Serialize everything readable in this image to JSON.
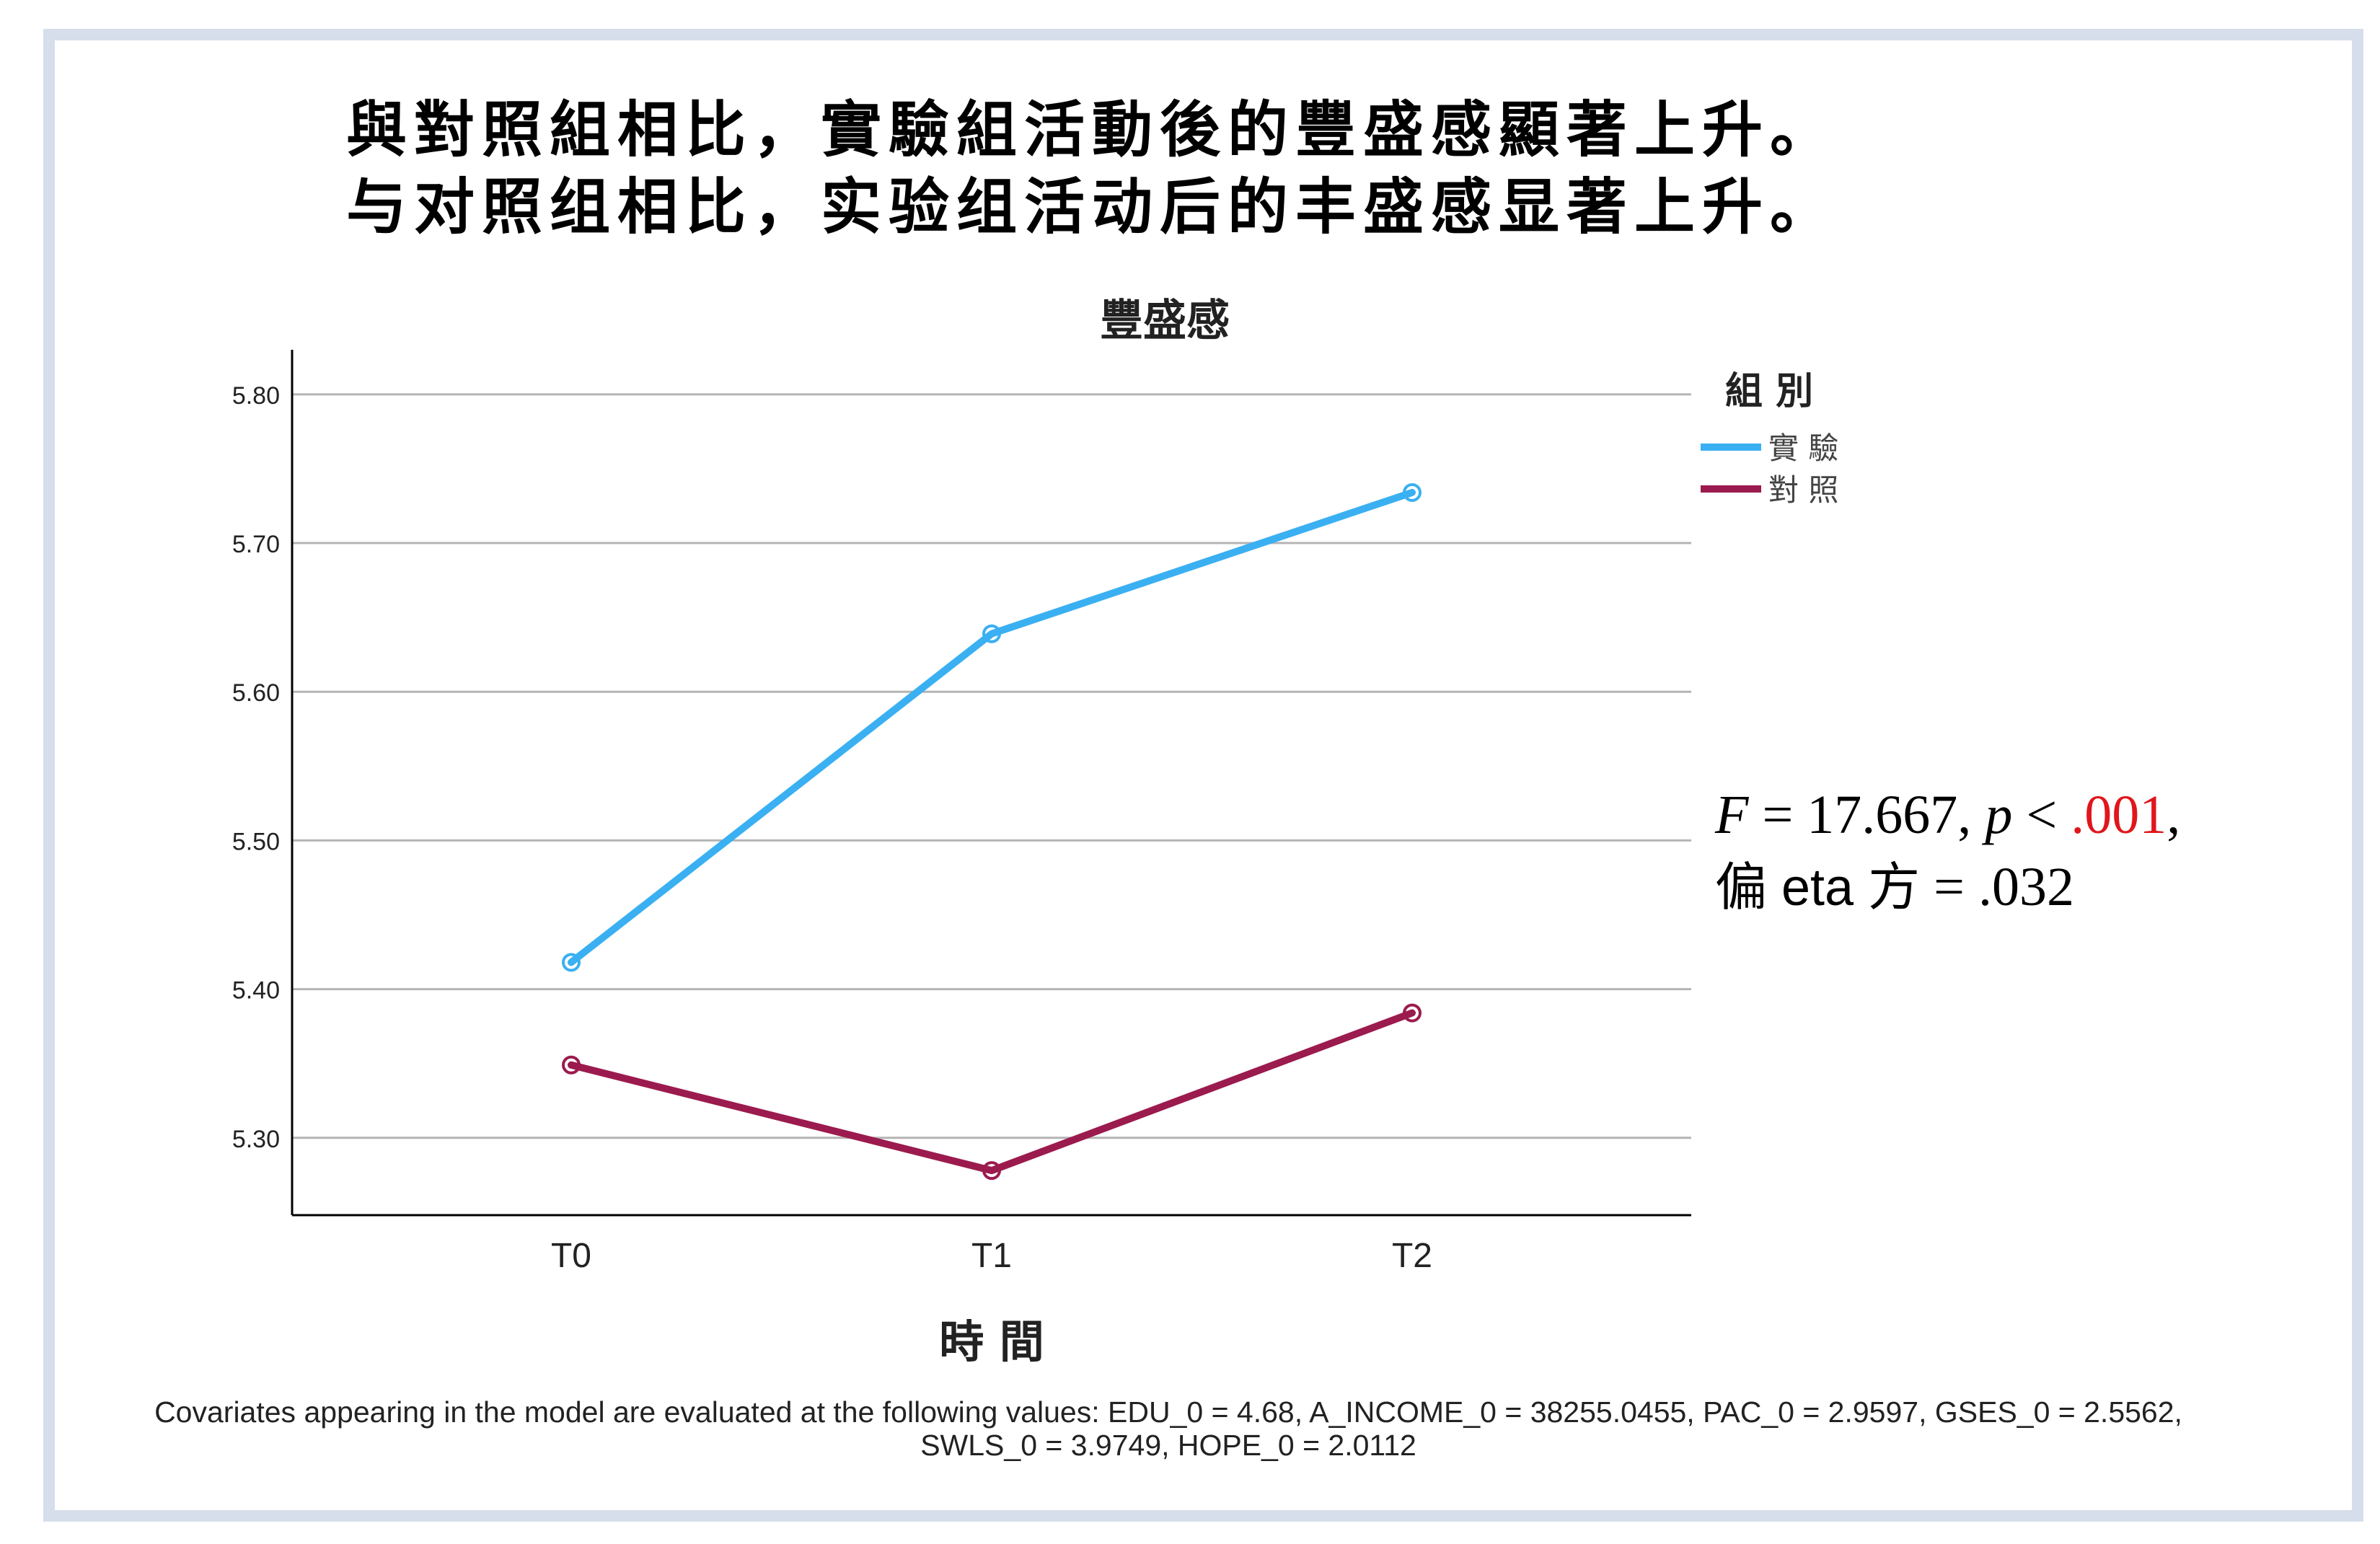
{
  "heading": {
    "line1": "與對照組相比，實驗組活動後的豐盛感顯著上升。",
    "line2": "与对照组相比，实验组活动后的丰盛感显著上升。"
  },
  "stats": {
    "F_symbol": "F",
    "F_text": " = 17.667, ",
    "p_symbol": "p",
    "p_text": " < ",
    "p_value": ".001",
    "p_trail": ",",
    "eta_label": "偏 eta 方",
    "eta_value": " = .032",
    "highlight_color": "#e0161c"
  },
  "footnote": "Covariates appearing in the model are evaluated at the following values: EDU_0 = 4.68, A_INCOME_0 = 38255.0455, PAC_0 = 2.9597, GSES_0 = 2.5562, SWLS_0 = 3.9749, HOPE_0 = 2.0112",
  "chart_data": {
    "type": "line",
    "title": "豐盛感",
    "xlabel": "時 間",
    "ylabel": "",
    "categories": [
      "T0",
      "T1",
      "T2"
    ],
    "ylim": [
      5.248,
      5.83
    ],
    "yticks": [
      5.3,
      5.4,
      5.5,
      5.6,
      5.7,
      5.8
    ],
    "ytick_labels": [
      "5.30",
      "5.40",
      "5.50",
      "5.60",
      "5.70",
      "5.80"
    ],
    "grid": true,
    "legend_title": "組 別",
    "legend_position": "top-right",
    "series": [
      {
        "name": "實 驗",
        "values": [
          5.418,
          5.639,
          5.734
        ],
        "color": "#3ab0f2"
      },
      {
        "name": "對 照",
        "values": [
          5.349,
          5.278,
          5.384
        ],
        "color": "#9b1b4e"
      }
    ]
  }
}
